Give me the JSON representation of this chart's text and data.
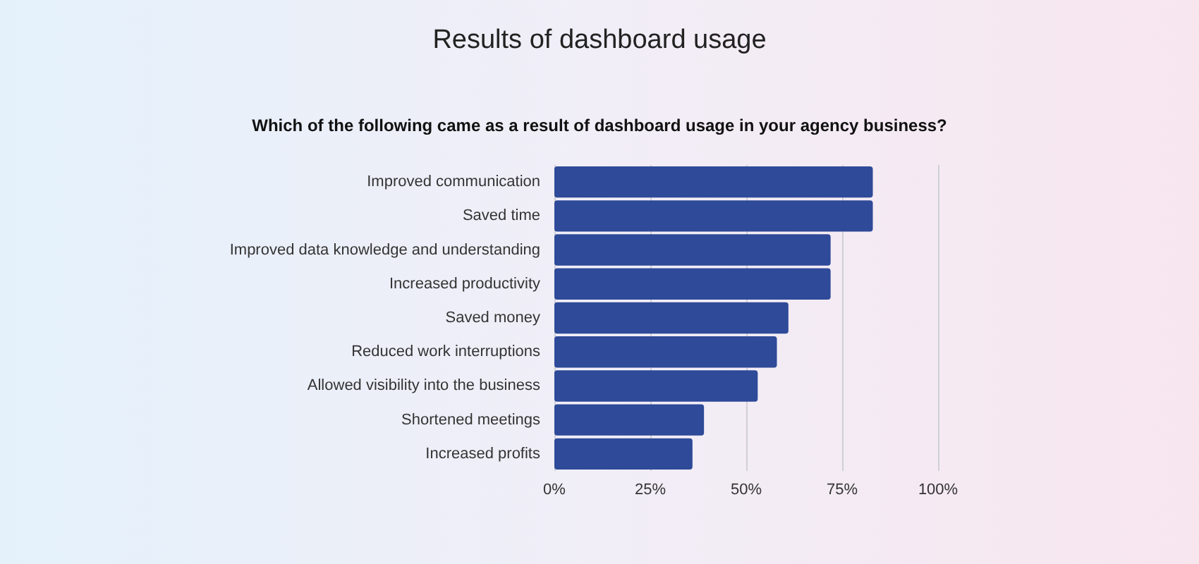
{
  "chart_data": {
    "type": "bar",
    "orientation": "horizontal",
    "title": "Results of dashboard usage",
    "subtitle": "Which of the following came as a result of dashboard usage in your agency business?",
    "categories": [
      "Improved communication",
      "Saved time",
      "Improved data knowledge and understanding",
      "Increased productivity",
      "Saved money",
      "Reduced work interruptions",
      "Allowed visibility into the business",
      "Shortened meetings",
      "Increased profits"
    ],
    "values": [
      83,
      83,
      72,
      72,
      61,
      58,
      53,
      39,
      36
    ],
    "color": "#2e4a98",
    "xlim": [
      0,
      100
    ],
    "xticks": [
      {
        "value": 0,
        "label": "0%"
      },
      {
        "value": 25,
        "label": "25%"
      },
      {
        "value": 50,
        "label": "50%"
      },
      {
        "value": 75,
        "label": "75%"
      },
      {
        "value": 100,
        "label": "100%"
      }
    ],
    "grid": "x"
  }
}
